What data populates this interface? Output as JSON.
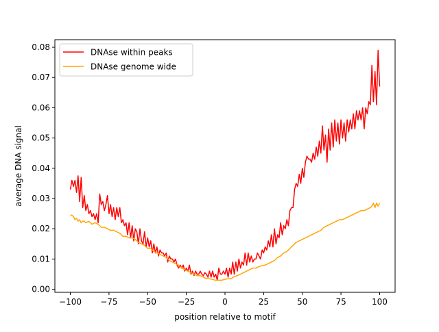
{
  "chart_data": {
    "type": "line",
    "title": "",
    "xlabel": "position relative to motif",
    "ylabel": "average DNA signal",
    "xlim": [
      -110,
      110
    ],
    "ylim": [
      -0.001,
      0.0825
    ],
    "xticks": [
      -100,
      -75,
      -50,
      -25,
      0,
      25,
      50,
      75,
      100
    ],
    "xtick_labels": [
      "−100",
      "−75",
      "−50",
      "−25",
      "0",
      "25",
      "50",
      "75",
      "100"
    ],
    "yticks": [
      0.0,
      0.01,
      0.02,
      0.03,
      0.04,
      0.05,
      0.06,
      0.07,
      0.08
    ],
    "ytick_labels": [
      "0.00",
      "0.01",
      "0.02",
      "0.03",
      "0.04",
      "0.05",
      "0.06",
      "0.07",
      "0.08"
    ],
    "grid": false,
    "legend_position": "top-left",
    "series": [
      {
        "name": "DNAse within peaks",
        "color": "#ff0000",
        "points": [
          [
            -100,
            0.033
          ],
          [
            -99,
            0.036
          ],
          [
            -98,
            0.034
          ],
          [
            -97,
            0.036
          ],
          [
            -96,
            0.032
          ],
          [
            -95,
            0.0375
          ],
          [
            -94,
            0.029
          ],
          [
            -93,
            0.037
          ],
          [
            -92,
            0.027
          ],
          [
            -91,
            0.031
          ],
          [
            -90,
            0.026
          ],
          [
            -89,
            0.028
          ],
          [
            -88,
            0.025
          ],
          [
            -87,
            0.026
          ],
          [
            -86,
            0.024
          ],
          [
            -85,
            0.025
          ],
          [
            -84,
            0.023
          ],
          [
            -83,
            0.025
          ],
          [
            -82,
            0.022
          ],
          [
            -81,
            0.0315
          ],
          [
            -80,
            0.028
          ],
          [
            -79,
            0.029
          ],
          [
            -78,
            0.026
          ],
          [
            -77,
            0.028
          ],
          [
            -76,
            0.031
          ],
          [
            -75,
            0.025
          ],
          [
            -74,
            0.028
          ],
          [
            -73,
            0.024
          ],
          [
            -72,
            0.027
          ],
          [
            -71,
            0.023
          ],
          [
            -70,
            0.027
          ],
          [
            -69,
            0.024
          ],
          [
            -68,
            0.027
          ],
          [
            -67,
            0.022
          ],
          [
            -66,
            0.023
          ],
          [
            -65,
            0.021
          ],
          [
            -64,
            0.022
          ],
          [
            -63,
            0.018
          ],
          [
            -62,
            0.022
          ],
          [
            -61,
            0.017
          ],
          [
            -60,
            0.021
          ],
          [
            -59,
            0.016
          ],
          [
            -58,
            0.02
          ],
          [
            -57,
            0.019
          ],
          [
            -56,
            0.015
          ],
          [
            -55,
            0.02
          ],
          [
            -54,
            0.016
          ],
          [
            -53,
            0.015
          ],
          [
            -52,
            0.019
          ],
          [
            -51,
            0.014
          ],
          [
            -50,
            0.017
          ],
          [
            -49,
            0.014
          ],
          [
            -48,
            0.016
          ],
          [
            -47,
            0.012
          ],
          [
            -46,
            0.015
          ],
          [
            -45,
            0.012
          ],
          [
            -44,
            0.014
          ],
          [
            -43,
            0.011
          ],
          [
            -42,
            0.013
          ],
          [
            -41,
            0.012
          ],
          [
            -40,
            0.012
          ],
          [
            -39,
            0.011
          ],
          [
            -38,
            0.012
          ],
          [
            -37,
            0.009
          ],
          [
            -36,
            0.011
          ],
          [
            -35,
            0.01
          ],
          [
            -34,
            0.01
          ],
          [
            -33,
            0.009
          ],
          [
            -32,
            0.01
          ],
          [
            -31,
            0.008
          ],
          [
            -30,
            0.007
          ],
          [
            -29,
            0.008
          ],
          [
            -28,
            0.007
          ],
          [
            -27,
            0.008
          ],
          [
            -26,
            0.006
          ],
          [
            -25,
            0.007
          ],
          [
            -24,
            0.006
          ],
          [
            -23,
            0.008
          ],
          [
            -22,
            0.005
          ],
          [
            -21,
            0.006
          ],
          [
            -20,
            0.0045
          ],
          [
            -19,
            0.006
          ],
          [
            -18,
            0.005
          ],
          [
            -17,
            0.005
          ],
          [
            -16,
            0.006
          ],
          [
            -15,
            0.005
          ],
          [
            -14,
            0.0045
          ],
          [
            -13,
            0.0055
          ],
          [
            -12,
            0.005
          ],
          [
            -11,
            0.004
          ],
          [
            -10,
            0.006
          ],
          [
            -9,
            0.004
          ],
          [
            -8,
            0.006
          ],
          [
            -7,
            0.004
          ],
          [
            -6,
            0.005
          ],
          [
            -5,
            0.003
          ],
          [
            -4,
            0.007
          ],
          [
            -3,
            0.005
          ],
          [
            -2,
            0.005
          ],
          [
            -1,
            0.006
          ],
          [
            0,
            0.005
          ],
          [
            1,
            0.007
          ],
          [
            2,
            0.004
          ],
          [
            3,
            0.007
          ],
          [
            4,
            0.005
          ],
          [
            5,
            0.009
          ],
          [
            6,
            0.005
          ],
          [
            7,
            0.009
          ],
          [
            8,
            0.006
          ],
          [
            9,
            0.01
          ],
          [
            10,
            0.007
          ],
          [
            11,
            0.009
          ],
          [
            12,
            0.008
          ],
          [
            13,
            0.012
          ],
          [
            14,
            0.008
          ],
          [
            15,
            0.012
          ],
          [
            16,
            0.009
          ],
          [
            17,
            0.011
          ],
          [
            18,
            0.009
          ],
          [
            19,
            0.01
          ],
          [
            20,
            0.01
          ],
          [
            21,
            0.012
          ],
          [
            22,
            0.011
          ],
          [
            23,
            0.01
          ],
          [
            24,
            0.013
          ],
          [
            25,
            0.012
          ],
          [
            26,
            0.014
          ],
          [
            27,
            0.013
          ],
          [
            28,
            0.016
          ],
          [
            29,
            0.014
          ],
          [
            30,
            0.018
          ],
          [
            31,
            0.014
          ],
          [
            32,
            0.02
          ],
          [
            33,
            0.015
          ],
          [
            34,
            0.018
          ],
          [
            35,
            0.017
          ],
          [
            36,
            0.022
          ],
          [
            37,
            0.018
          ],
          [
            38,
            0.021
          ],
          [
            39,
            0.02
          ],
          [
            40,
            0.023
          ],
          [
            41,
            0.021
          ],
          [
            42,
            0.026
          ],
          [
            43,
            0.027
          ],
          [
            44,
            0.027
          ],
          [
            45,
            0.033
          ],
          [
            46,
            0.035
          ],
          [
            47,
            0.034
          ],
          [
            48,
            0.038
          ],
          [
            49,
            0.035
          ],
          [
            50,
            0.04
          ],
          [
            51,
            0.037
          ],
          [
            52,
            0.042
          ],
          [
            53,
            0.044
          ],
          [
            54,
            0.043
          ],
          [
            55,
            0.043
          ],
          [
            56,
            0.042
          ],
          [
            57,
            0.045
          ],
          [
            58,
            0.043
          ],
          [
            59,
            0.047
          ],
          [
            60,
            0.044
          ],
          [
            61,
            0.049
          ],
          [
            62,
            0.045
          ],
          [
            63,
            0.054
          ],
          [
            64,
            0.046
          ],
          [
            65,
            0.051
          ],
          [
            66,
            0.042
          ],
          [
            67,
            0.053
          ],
          [
            68,
            0.046
          ],
          [
            69,
            0.055
          ],
          [
            70,
            0.047
          ],
          [
            71,
            0.056
          ],
          [
            72,
            0.049
          ],
          [
            73,
            0.055
          ],
          [
            74,
            0.048
          ],
          [
            75,
            0.056
          ],
          [
            76,
            0.05
          ],
          [
            77,
            0.055
          ],
          [
            78,
            0.049
          ],
          [
            79,
            0.056
          ],
          [
            80,
            0.052
          ],
          [
            81,
            0.056
          ],
          [
            82,
            0.053
          ],
          [
            83,
            0.058
          ],
          [
            84,
            0.053
          ],
          [
            85,
            0.059
          ],
          [
            86,
            0.056
          ],
          [
            87,
            0.059
          ],
          [
            88,
            0.056
          ],
          [
            89,
            0.06
          ],
          [
            90,
            0.053
          ],
          [
            91,
            0.06
          ],
          [
            92,
            0.058
          ],
          [
            93,
            0.062
          ],
          [
            94,
            0.061
          ],
          [
            95,
            0.074
          ],
          [
            96,
            0.062
          ],
          [
            97,
            0.072
          ],
          [
            98,
            0.061
          ],
          [
            99,
            0.079
          ],
          [
            100,
            0.067
          ]
        ]
      },
      {
        "name": "DNAse genome wide",
        "color": "#ffa500",
        "points": [
          [
            -100,
            0.0245
          ],
          [
            -99,
            0.0245
          ],
          [
            -98,
            0.024
          ],
          [
            -97,
            0.023
          ],
          [
            -96,
            0.0235
          ],
          [
            -95,
            0.0225
          ],
          [
            -94,
            0.023
          ],
          [
            -93,
            0.022
          ],
          [
            -92,
            0.0225
          ],
          [
            -91,
            0.0225
          ],
          [
            -90,
            0.022
          ],
          [
            -88,
            0.0225
          ],
          [
            -86,
            0.0215
          ],
          [
            -84,
            0.022
          ],
          [
            -82,
            0.0215
          ],
          [
            -80,
            0.0205
          ],
          [
            -78,
            0.0205
          ],
          [
            -76,
            0.02
          ],
          [
            -74,
            0.0195
          ],
          [
            -72,
            0.0195
          ],
          [
            -70,
            0.019
          ],
          [
            -68,
            0.0185
          ],
          [
            -66,
            0.0175
          ],
          [
            -64,
            0.0175
          ],
          [
            -62,
            0.017
          ],
          [
            -60,
            0.017
          ],
          [
            -58,
            0.0165
          ],
          [
            -56,
            0.0155
          ],
          [
            -54,
            0.015
          ],
          [
            -52,
            0.0145
          ],
          [
            -50,
            0.0135
          ],
          [
            -48,
            0.0135
          ],
          [
            -46,
            0.0125
          ],
          [
            -44,
            0.012
          ],
          [
            -42,
            0.0115
          ],
          [
            -40,
            0.011
          ],
          [
            -38,
            0.0105
          ],
          [
            -36,
            0.0095
          ],
          [
            -34,
            0.009
          ],
          [
            -32,
            0.0085
          ],
          [
            -30,
            0.008
          ],
          [
            -28,
            0.007
          ],
          [
            -26,
            0.0065
          ],
          [
            -24,
            0.006
          ],
          [
            -22,
            0.0055
          ],
          [
            -20,
            0.005
          ],
          [
            -18,
            0.0045
          ],
          [
            -16,
            0.0045
          ],
          [
            -14,
            0.004
          ],
          [
            -12,
            0.0035
          ],
          [
            -10,
            0.0035
          ],
          [
            -8,
            0.0032
          ],
          [
            -6,
            0.003
          ],
          [
            -4,
            0.003
          ],
          [
            -2,
            0.003
          ],
          [
            0,
            0.0033
          ],
          [
            2,
            0.0035
          ],
          [
            4,
            0.0035
          ],
          [
            6,
            0.0042
          ],
          [
            8,
            0.0045
          ],
          [
            10,
            0.005
          ],
          [
            12,
            0.0055
          ],
          [
            14,
            0.006
          ],
          [
            16,
            0.0065
          ],
          [
            18,
            0.007
          ],
          [
            20,
            0.007
          ],
          [
            22,
            0.0075
          ],
          [
            24,
            0.0078
          ],
          [
            26,
            0.008
          ],
          [
            28,
            0.0085
          ],
          [
            30,
            0.009
          ],
          [
            32,
            0.0095
          ],
          [
            34,
            0.0105
          ],
          [
            36,
            0.011
          ],
          [
            38,
            0.012
          ],
          [
            40,
            0.0125
          ],
          [
            42,
            0.0135
          ],
          [
            44,
            0.0145
          ],
          [
            46,
            0.0155
          ],
          [
            48,
            0.016
          ],
          [
            50,
            0.0165
          ],
          [
            52,
            0.017
          ],
          [
            54,
            0.0175
          ],
          [
            56,
            0.018
          ],
          [
            58,
            0.0185
          ],
          [
            60,
            0.019
          ],
          [
            62,
            0.0195
          ],
          [
            64,
            0.0205
          ],
          [
            66,
            0.021
          ],
          [
            68,
            0.0215
          ],
          [
            70,
            0.022
          ],
          [
            72,
            0.0225
          ],
          [
            74,
            0.023
          ],
          [
            76,
            0.023
          ],
          [
            78,
            0.0235
          ],
          [
            80,
            0.024
          ],
          [
            82,
            0.0245
          ],
          [
            84,
            0.025
          ],
          [
            86,
            0.0255
          ],
          [
            88,
            0.026
          ],
          [
            90,
            0.026
          ],
          [
            92,
            0.0265
          ],
          [
            94,
            0.027
          ],
          [
            95,
            0.0275
          ],
          [
            96,
            0.0285
          ],
          [
            97,
            0.027
          ],
          [
            98,
            0.0285
          ],
          [
            99,
            0.0275
          ],
          [
            100,
            0.0285
          ]
        ]
      }
    ]
  }
}
